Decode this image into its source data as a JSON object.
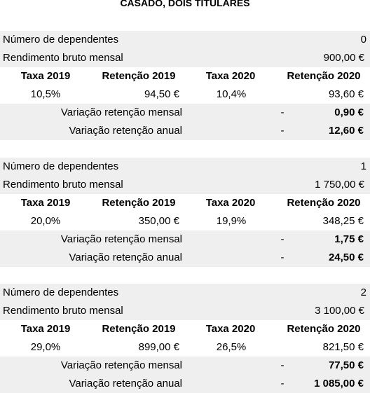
{
  "header": {
    "title": "CASADO, DOIS TITULARES"
  },
  "blocks": [
    {
      "dependentes": {
        "label": "Número de dependentes",
        "value": "0"
      },
      "rendimento": {
        "label": "Rendimento bruto mensal",
        "value": "900,00 €"
      },
      "columns": [
        "Taxa 2019",
        "Retenção 2019",
        "Taxa 2020",
        "Retenção 2020"
      ],
      "row": [
        "10,5%",
        "94,50 €",
        "10,4%",
        "93,60 €"
      ],
      "variacoes": [
        {
          "label": "Variação retenção mensal",
          "sign": "-",
          "value": "0,90 €"
        },
        {
          "label": "Variação retenção anual",
          "sign": "-",
          "value": "12,60 €"
        }
      ]
    },
    {
      "dependentes": {
        "label": "Número de dependentes",
        "value": "1"
      },
      "rendimento": {
        "label": "Rendimento bruto mensal",
        "value": "1 750,00 €"
      },
      "columns": [
        "Taxa 2019",
        "Retenção 2019",
        "Taxa 2020",
        "Retenção 2020"
      ],
      "row": [
        "20,0%",
        "350,00 €",
        "19,9%",
        "348,25 €"
      ],
      "variacoes": [
        {
          "label": "Variação retenção mensal",
          "sign": "-",
          "value": "1,75 €"
        },
        {
          "label": "Variação retenção anual",
          "sign": "-",
          "value": "24,50 €"
        }
      ]
    },
    {
      "dependentes": {
        "label": "Número de dependentes",
        "value": "2"
      },
      "rendimento": {
        "label": "Rendimento bruto mensal",
        "value": "3 100,00 €"
      },
      "columns": [
        "Taxa 2019",
        "Retenção 2019",
        "Taxa 2020",
        "Retenção 2020"
      ],
      "row": [
        "29,0%",
        "899,00 €",
        "26,5%",
        "821,50 €"
      ],
      "variacoes": [
        {
          "label": "Variação retenção mensal",
          "sign": "-",
          "value": "77,50 €"
        },
        {
          "label": "Variação retenção anual",
          "sign": "-",
          "value": "1 085,00 €"
        }
      ]
    }
  ]
}
